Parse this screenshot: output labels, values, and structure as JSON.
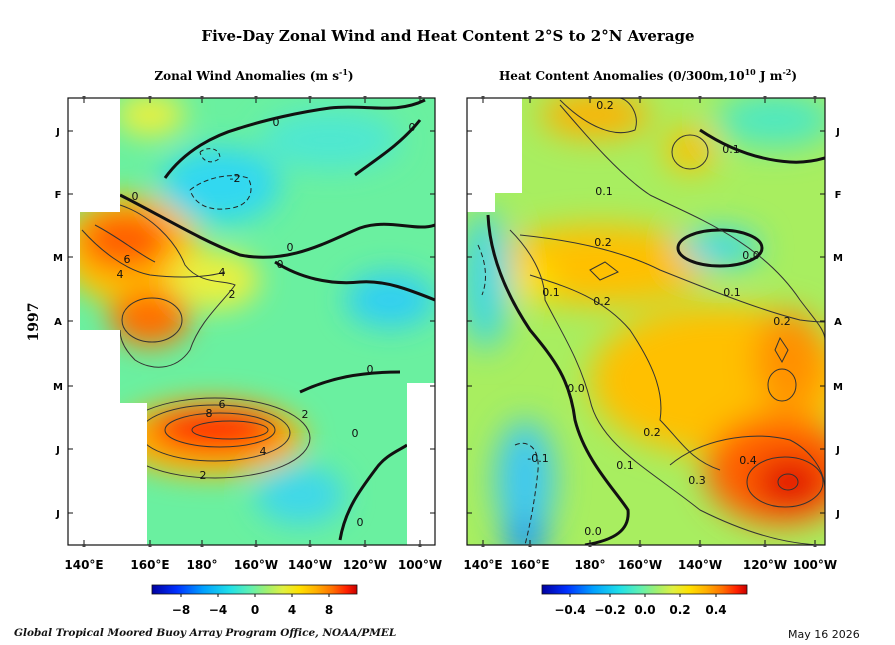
{
  "title": "Five-Day Zonal Wind and Heat Content  2°S to 2°N Average",
  "year_label": "1997",
  "credit": "Global Tropical Moored Buoy Array Program Office, NOAA/PMEL",
  "date": "May 16 2026",
  "colors": {
    "scale": [
      "#0000a0",
      "#0030ff",
      "#00a0ff",
      "#20e0e8",
      "#60f0b0",
      "#a0f070",
      "#e0f040",
      "#ffe000",
      "#ffb000",
      "#ff7000",
      "#ff2000",
      "#c80000"
    ],
    "contour": "#111111"
  },
  "chart_data": [
    {
      "type": "heatmap",
      "title": "Zonal Wind Anomalies (m s",
      "title_sup": "-1",
      "title_tail": ")",
      "x_ticks": [
        "140°E",
        "160°E",
        "180°",
        "160°W",
        "140°W",
        "120°W",
        "100°W"
      ],
      "y_ticks": [
        "J",
        "F",
        "M",
        "A",
        "M",
        "J",
        "J"
      ],
      "x_range_lon_e": [
        135,
        265
      ],
      "colorbar": {
        "range": [
          -10,
          10
        ],
        "ticks": [
          "−8",
          "−4",
          "0",
          "4",
          "8"
        ]
      },
      "contour_labels": [
        "0",
        "0",
        "-2",
        "0",
        "0",
        "0",
        "0",
        "6",
        "4",
        "4",
        "2",
        "0",
        "6",
        "8",
        "2",
        "4",
        "2",
        "0"
      ],
      "fields": [
        {
          "lon": 145,
          "t": 0.34,
          "v": 8
        },
        {
          "lon": 152,
          "t": 0.54,
          "v": 8
        },
        {
          "lon": 172,
          "t": 0.72,
          "v": 9
        },
        {
          "lon": 200,
          "t": 0.71,
          "v": 7
        },
        {
          "lon": 195,
          "t": 0.18,
          "v": -3
        },
        {
          "lon": 205,
          "t": 0.12,
          "v": -1
        },
        {
          "lon": 245,
          "t": 0.4,
          "v": -1
        },
        {
          "lon": 170,
          "t": 0.52,
          "v": 3
        },
        {
          "lon": 175,
          "t": 0.05,
          "v": 3
        }
      ]
    },
    {
      "type": "heatmap",
      "title": "Heat Content Anomalies (0/300m,10",
      "title_sup": "10",
      "title_mid": " J m",
      "title_sup2": "-2",
      "title_tail": ")",
      "x_ticks": [
        "140°E",
        "160°E",
        "180°",
        "160°W",
        "140°W",
        "120°W",
        "100°W"
      ],
      "y_ticks": [
        "J",
        "F",
        "M",
        "A",
        "M",
        "J",
        "J"
      ],
      "x_range_lon_e": [
        135,
        265
      ],
      "colorbar": {
        "range": [
          -0.5,
          0.5
        ],
        "ticks": [
          "−0.4",
          "−0.2",
          "0.0",
          "0.2",
          "0.4"
        ]
      },
      "contour_labels": [
        "0.2",
        "0.1",
        "0.1",
        "0.2",
        "0.0",
        "0.1",
        "0.1",
        "0.2",
        "0.2",
        "0.0",
        "0.2",
        "0.1",
        "0.3",
        "0.4",
        "-0.1",
        "0.0"
      ],
      "fields": [
        {
          "lon": 252,
          "t": 0.86,
          "v": 0.5
        },
        {
          "lon": 230,
          "t": 0.8,
          "v": 0.32
        },
        {
          "lon": 250,
          "t": 0.62,
          "v": 0.3
        },
        {
          "lon": 180,
          "t": 0.37,
          "v": 0.28
        },
        {
          "lon": 185,
          "t": 0.02,
          "v": 0.22
        },
        {
          "lon": 215,
          "t": 0.12,
          "v": 0.2
        },
        {
          "lon": 220,
          "t": 0.35,
          "v": -0.04
        },
        {
          "lon": 162,
          "t": 0.92,
          "v": -0.15
        },
        {
          "lon": 140,
          "t": 0.42,
          "v": -0.1
        }
      ]
    }
  ]
}
